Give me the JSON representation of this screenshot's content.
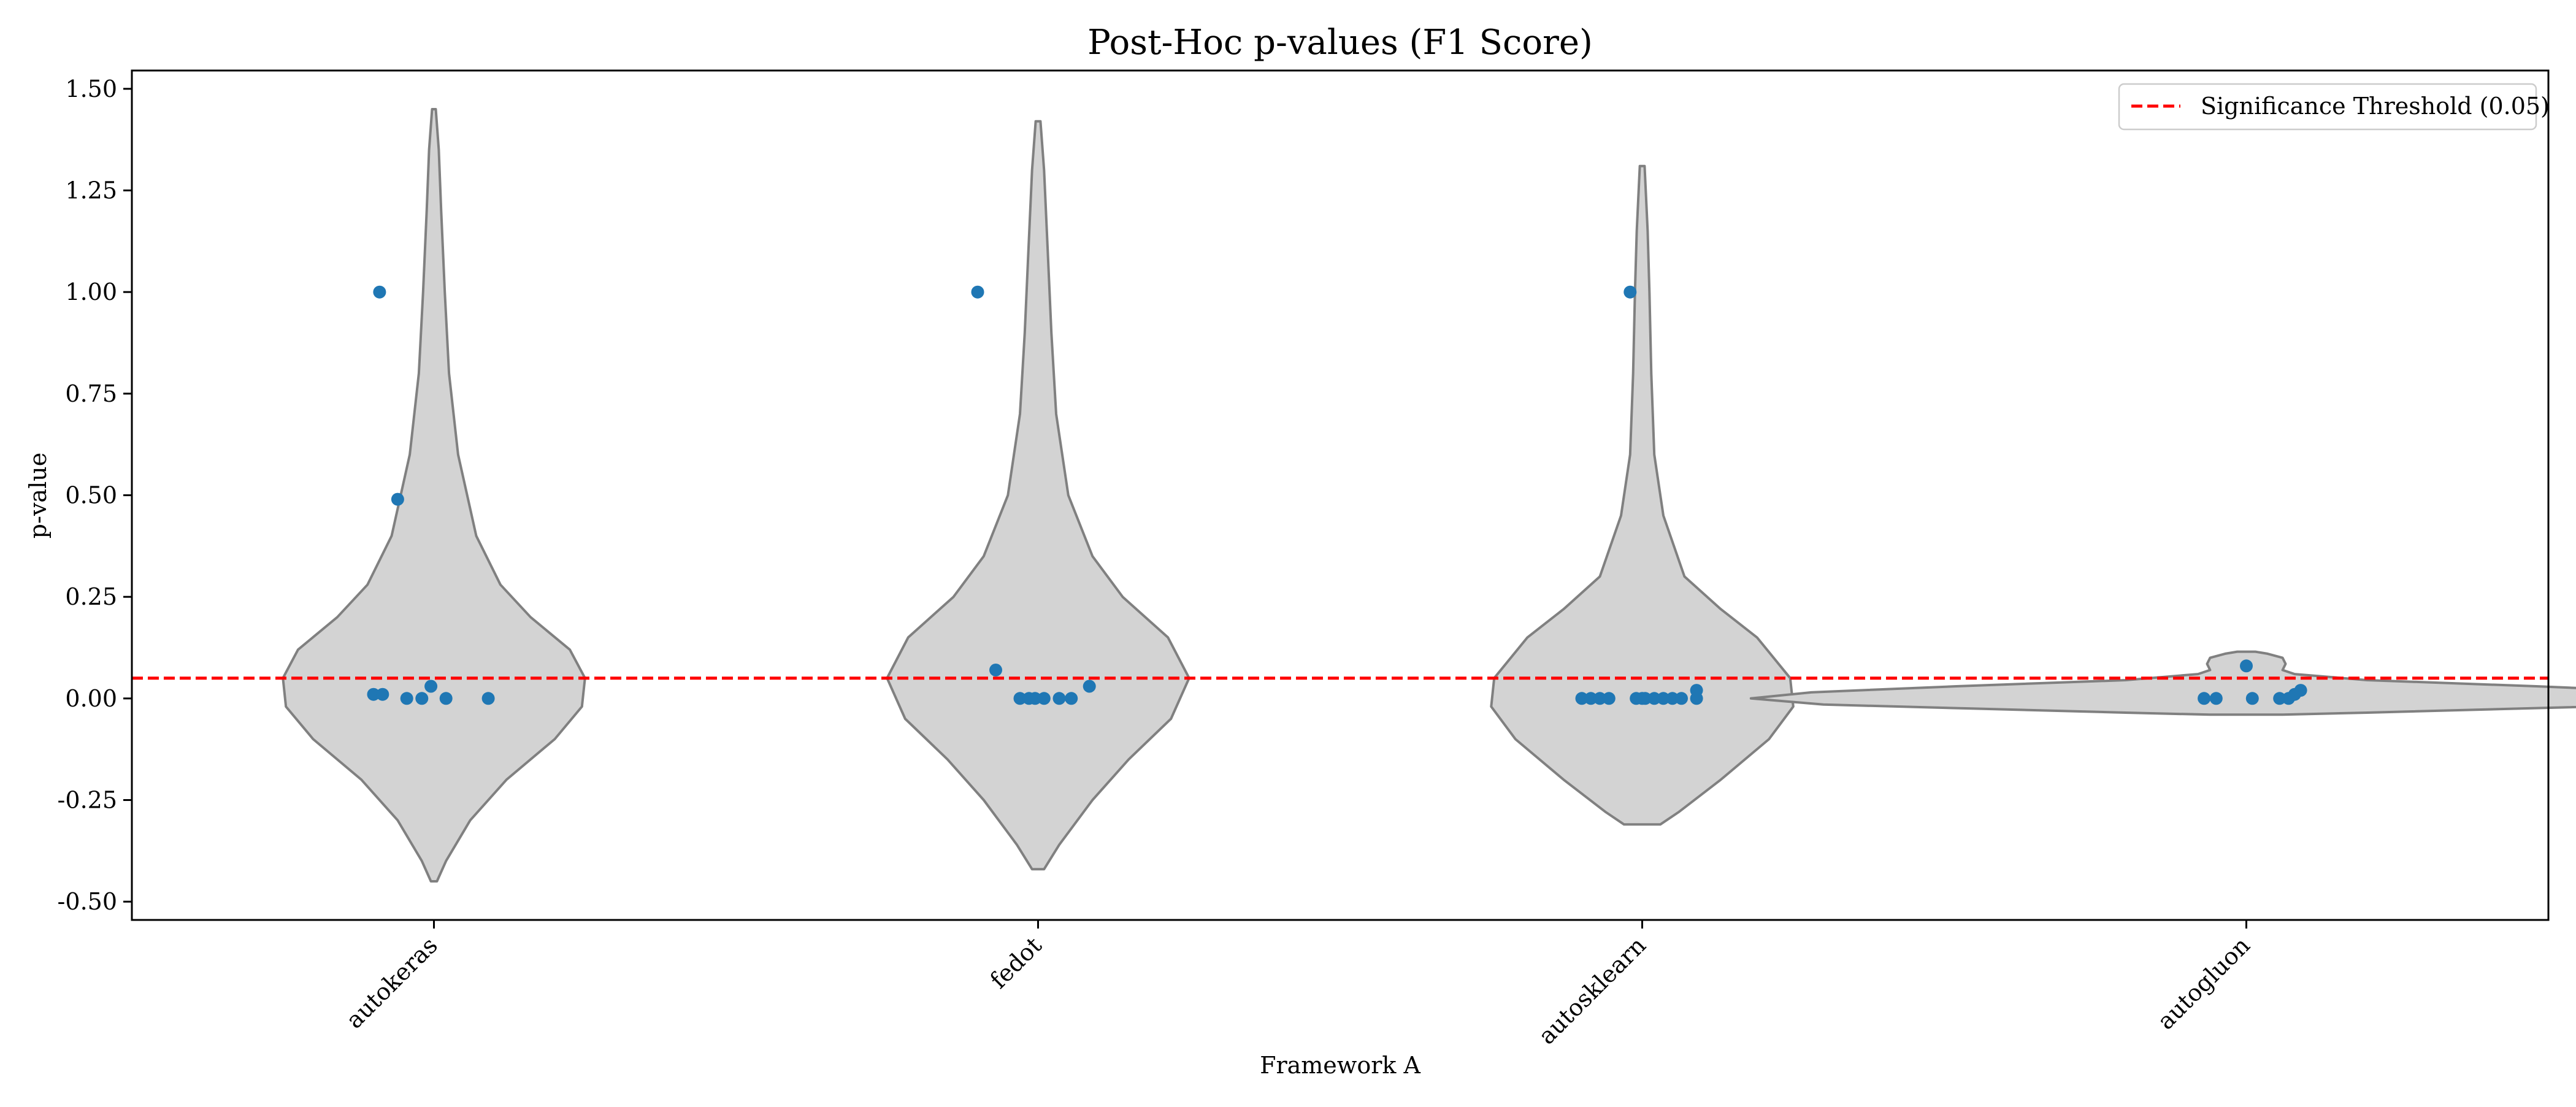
{
  "chart_data": {
    "type": "violin",
    "title": "Post-Hoc p-values (F1 Score)",
    "xlabel": "Framework A",
    "ylabel": "p-value",
    "categories": [
      "autokeras",
      "fedot",
      "autosklearn",
      "autogluon"
    ],
    "ylim": [
      -0.545,
      1.545
    ],
    "yticks": [
      -0.5,
      -0.25,
      0.0,
      0.25,
      0.5,
      0.75,
      1.0,
      1.25,
      1.5
    ],
    "ytick_labels": [
      "-0.50",
      "-0.25",
      "0.00",
      "0.25",
      "0.50",
      "0.75",
      "1.00",
      "1.25",
      "1.50"
    ],
    "grid": false,
    "threshold": {
      "value": 0.05,
      "label": "Significance Threshold (0.05)",
      "color": "#ff0000",
      "style": "dashed"
    },
    "legend": {
      "placement": "top-right"
    },
    "colors": {
      "violin_fill": "#d3d3d3",
      "violin_edge": "#808080",
      "points": "#1f77b4"
    },
    "violins": [
      {
        "category": "autokeras",
        "profile": [
          [
            -0.45,
            0.005
          ],
          [
            -0.4,
            0.02
          ],
          [
            -0.3,
            0.06
          ],
          [
            -0.2,
            0.12
          ],
          [
            -0.1,
            0.2
          ],
          [
            -0.02,
            0.245
          ],
          [
            0.05,
            0.25
          ],
          [
            0.12,
            0.225
          ],
          [
            0.2,
            0.16
          ],
          [
            0.28,
            0.11
          ],
          [
            0.4,
            0.07
          ],
          [
            0.6,
            0.04
          ],
          [
            0.8,
            0.025
          ],
          [
            1.0,
            0.018
          ],
          [
            1.2,
            0.012
          ],
          [
            1.35,
            0.008
          ],
          [
            1.45,
            0.003
          ]
        ]
      },
      {
        "category": "fedot",
        "profile": [
          [
            -0.42,
            0.01
          ],
          [
            -0.36,
            0.035
          ],
          [
            -0.25,
            0.09
          ],
          [
            -0.15,
            0.15
          ],
          [
            -0.05,
            0.22
          ],
          [
            0.05,
            0.25
          ],
          [
            0.15,
            0.215
          ],
          [
            0.25,
            0.14
          ],
          [
            0.35,
            0.09
          ],
          [
            0.5,
            0.05
          ],
          [
            0.7,
            0.03
          ],
          [
            0.9,
            0.022
          ],
          [
            1.1,
            0.016
          ],
          [
            1.3,
            0.01
          ],
          [
            1.42,
            0.004
          ]
        ]
      },
      {
        "category": "autosklearn",
        "profile": [
          [
            -0.31,
            0.03
          ],
          [
            -0.28,
            0.06
          ],
          [
            -0.2,
            0.13
          ],
          [
            -0.1,
            0.21
          ],
          [
            -0.02,
            0.25
          ],
          [
            0.05,
            0.245
          ],
          [
            0.15,
            0.19
          ],
          [
            0.22,
            0.13
          ],
          [
            0.3,
            0.07
          ],
          [
            0.45,
            0.035
          ],
          [
            0.6,
            0.02
          ],
          [
            0.8,
            0.015
          ],
          [
            1.0,
            0.012
          ],
          [
            1.15,
            0.009
          ],
          [
            1.31,
            0.004
          ]
        ]
      },
      {
        "category": "autogluon",
        "profile": [
          [
            -0.04,
            0.06
          ],
          [
            -0.035,
            0.2
          ],
          [
            -0.025,
            0.45
          ],
          [
            -0.015,
            0.7
          ],
          [
            0.0,
            0.82
          ],
          [
            0.015,
            0.72
          ],
          [
            0.03,
            0.48
          ],
          [
            0.045,
            0.2
          ],
          [
            0.06,
            0.08
          ],
          [
            0.07,
            0.06
          ],
          [
            0.085,
            0.065
          ],
          [
            0.1,
            0.06
          ],
          [
            0.11,
            0.035
          ],
          [
            0.115,
            0.015
          ]
        ]
      }
    ],
    "points": [
      {
        "category": "autokeras",
        "values": [
          1.0,
          0.49,
          0.01,
          0.01,
          0.0,
          0.0,
          0.03,
          0.0,
          0.0
        ],
        "offsets": [
          -0.09,
          -0.06,
          -0.1,
          -0.085,
          -0.045,
          -0.02,
          -0.005,
          0.02,
          0.09
        ]
      },
      {
        "category": "fedot",
        "values": [
          1.0,
          0.07,
          0.0,
          0.0,
          0.0,
          0.0,
          0.0,
          0.0,
          0.03
        ],
        "offsets": [
          -0.1,
          -0.07,
          -0.03,
          -0.015,
          -0.005,
          0.01,
          0.035,
          0.055,
          0.085
        ]
      },
      {
        "category": "autosklearn",
        "values": [
          1.0,
          0.0,
          0.0,
          0.0,
          0.0,
          0.0,
          0.0,
          0.0,
          0.0,
          0.0,
          0.0,
          0.0,
          0.0,
          0.02
        ],
        "offsets": [
          -0.02,
          -0.1,
          -0.085,
          -0.07,
          -0.055,
          -0.01,
          0.005,
          0.02,
          0.035,
          0.05,
          0.065,
          0.0,
          0.09,
          0.09
        ]
      },
      {
        "category": "autogluon",
        "values": [
          0.08,
          0.0,
          0.0,
          0.0,
          0.0,
          0.0,
          0.01,
          0.02
        ],
        "offsets": [
          0.0,
          -0.07,
          -0.05,
          0.01,
          0.055,
          0.07,
          0.08,
          0.09
        ]
      }
    ]
  }
}
